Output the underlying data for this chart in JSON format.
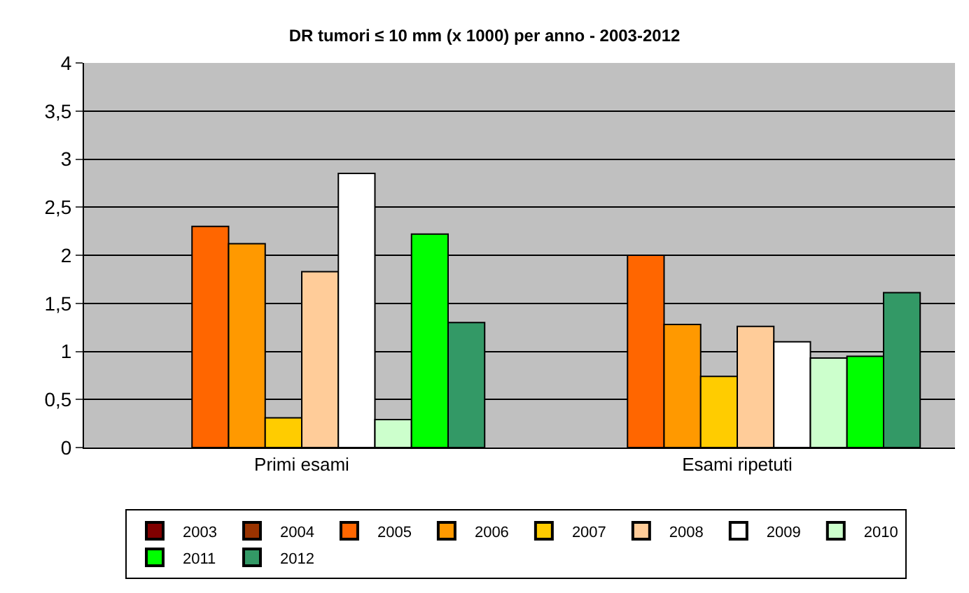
{
  "chart_data": {
    "type": "bar",
    "title": "DR tumori ≤ 10 mm (x 1000) per anno - 2003-2012",
    "categories": [
      "Primi esami",
      "Esami ripetuti"
    ],
    "series": [
      {
        "name": "2003",
        "color": "#800000",
        "values": [
          null,
          null
        ]
      },
      {
        "name": "2004",
        "color": "#993300",
        "values": [
          null,
          null
        ]
      },
      {
        "name": "2005",
        "color": "#ff6600",
        "values": [
          2.3,
          2.0
        ]
      },
      {
        "name": "2006",
        "color": "#ff9900",
        "values": [
          2.12,
          1.28
        ]
      },
      {
        "name": "2007",
        "color": "#ffcc00",
        "values": [
          0.31,
          0.74
        ]
      },
      {
        "name": "2008",
        "color": "#ffcc99",
        "values": [
          1.83,
          1.26
        ]
      },
      {
        "name": "2009",
        "color": "#ffffff",
        "values": [
          2.85,
          1.1
        ]
      },
      {
        "name": "2010",
        "color": "#ccffcc",
        "values": [
          0.29,
          0.93
        ]
      },
      {
        "name": "2011",
        "color": "#00ff00",
        "values": [
          2.22,
          0.95
        ]
      },
      {
        "name": "2012",
        "color": "#339966",
        "values": [
          1.3,
          1.61
        ]
      }
    ],
    "ylim": [
      0,
      4
    ],
    "yticks": [
      0,
      {
        "value": 0.5,
        "label": "0,5"
      },
      1,
      {
        "value": 1.5,
        "label": "1,5"
      },
      2,
      {
        "value": 2.5,
        "label": "2,5"
      },
      3,
      {
        "value": 3.5,
        "label": "3,5"
      },
      4
    ],
    "grid": "y",
    "legend": "bottom"
  }
}
